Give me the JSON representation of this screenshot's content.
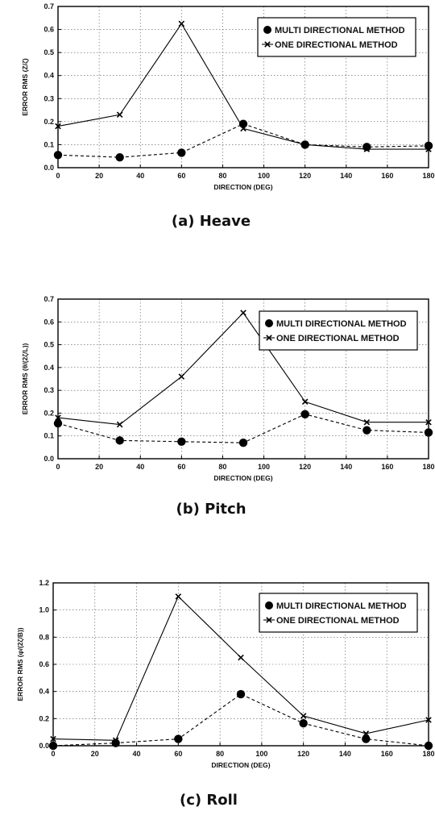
{
  "chart_data": [
    {
      "type": "line",
      "caption": "(a)  Heave",
      "xlabel": "DIRECTION (DEG)",
      "ylabel": "ERROR RMS (Z/ζ)",
      "xlim": [
        0,
        180
      ],
      "ylim": [
        0,
        0.7
      ],
      "xticks": [
        "0",
        "20",
        "40",
        "60",
        "80",
        "100",
        "120",
        "140",
        "160",
        "180"
      ],
      "yticks": [
        "0.0",
        "0.1",
        "0.2",
        "0.3",
        "0.4",
        "0.5",
        "0.6",
        "0.7"
      ],
      "grid": true,
      "legend_position": "top-right",
      "series": [
        {
          "name": "MULTI DIRECTIONAL METHOD",
          "style": "dashed-circle",
          "x": [
            0,
            30,
            60,
            90,
            120,
            150,
            180
          ],
          "y": [
            0.055,
            0.045,
            0.065,
            0.19,
            0.1,
            0.09,
            0.095
          ]
        },
        {
          "name": "ONE DIRECTIONAL METHOD",
          "style": "solid-cross",
          "x": [
            0,
            30,
            60,
            90,
            120,
            150,
            180
          ],
          "y": [
            0.18,
            0.23,
            0.625,
            0.17,
            0.1,
            0.08,
            0.08
          ]
        }
      ]
    },
    {
      "type": "line",
      "caption": "(b)  Pitch",
      "xlabel": "DIRECTION (DEG)",
      "ylabel": "ERROR RMS (θ/(2ζ/L))",
      "xlim": [
        0,
        180
      ],
      "ylim": [
        0,
        0.7
      ],
      "xticks": [
        "0",
        "20",
        "40",
        "60",
        "80",
        "100",
        "120",
        "140",
        "160",
        "180"
      ],
      "yticks": [
        "0.0",
        "0.1",
        "0.2",
        "0.3",
        "0.4",
        "0.5",
        "0.6",
        "0.7"
      ],
      "grid": true,
      "legend_position": "top-right",
      "series": [
        {
          "name": "MULTI DIRECTIONAL METHOD",
          "style": "dashed-circle",
          "x": [
            0,
            30,
            60,
            90,
            120,
            150,
            180
          ],
          "y": [
            0.155,
            0.08,
            0.075,
            0.07,
            0.195,
            0.125,
            0.115
          ]
        },
        {
          "name": "ONE DIRECTIONAL METHOD",
          "style": "solid-cross",
          "x": [
            0,
            30,
            60,
            90,
            120,
            150,
            180
          ],
          "y": [
            0.18,
            0.15,
            0.36,
            0.64,
            0.25,
            0.16,
            0.16
          ]
        }
      ]
    },
    {
      "type": "line",
      "caption": "(c)  Roll",
      "xlabel": "DIRECTION (DEG)",
      "ylabel": "ERROR RMS (φ/(2ζ/B))",
      "xlim": [
        0,
        180
      ],
      "ylim": [
        0,
        1.2
      ],
      "xticks": [
        "0",
        "20",
        "40",
        "60",
        "80",
        "100",
        "120",
        "140",
        "160",
        "180"
      ],
      "yticks": [
        "0.0",
        "0.2",
        "0.4",
        "0.6",
        "0.8",
        "1.0",
        "1.2"
      ],
      "grid": true,
      "legend_position": "top-right",
      "series": [
        {
          "name": "MULTI DIRECTIONAL METHOD",
          "style": "dashed-circle",
          "x": [
            0,
            30,
            60,
            90,
            120,
            150,
            180
          ],
          "y": [
            0.0,
            0.02,
            0.05,
            0.38,
            0.165,
            0.05,
            0.0
          ]
        },
        {
          "name": "ONE DIRECTIONAL METHOD",
          "style": "solid-cross",
          "x": [
            0,
            30,
            60,
            90,
            120,
            150,
            180
          ],
          "y": [
            0.05,
            0.04,
            1.1,
            0.65,
            0.22,
            0.09,
            0.19
          ]
        }
      ]
    }
  ]
}
